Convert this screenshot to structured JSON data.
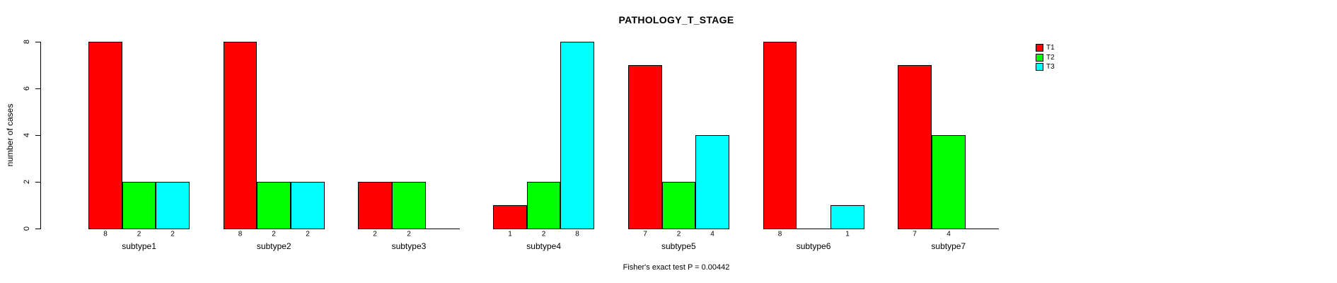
{
  "chart_data": {
    "type": "bar",
    "title": "PATHOLOGY_T_STAGE",
    "ylabel": "number of cases",
    "xlabel": "",
    "annotation": "Fisher's exact test P = 0.00442",
    "categories": [
      "subtype1",
      "subtype2",
      "subtype3",
      "subtype4",
      "subtype5",
      "subtype6",
      "subtype7"
    ],
    "series": [
      {
        "name": "T1",
        "color": "#ff0000",
        "values": [
          8,
          8,
          2,
          1,
          7,
          8,
          7
        ]
      },
      {
        "name": "T2",
        "color": "#00ff00",
        "values": [
          2,
          2,
          2,
          2,
          2,
          0,
          4
        ]
      },
      {
        "name": "T3",
        "color": "#00ffff",
        "values": [
          2,
          2,
          0,
          8,
          4,
          1,
          0
        ]
      }
    ],
    "bar_value_labels": {
      "subtype1": [
        8,
        2,
        2
      ],
      "subtype2": [
        8,
        2,
        2
      ],
      "subtype3": [
        2,
        2,
        null
      ],
      "subtype4": [
        1,
        2,
        8
      ],
      "subtype5": [
        7,
        2,
        4
      ],
      "subtype6": [
        8,
        null,
        1
      ],
      "subtype7": [
        7,
        4,
        null
      ]
    },
    "yticks": [
      "0",
      "2",
      "4",
      "6",
      "8"
    ],
    "ylim": [
      0,
      8
    ],
    "grid": false,
    "legend_position": "top-right",
    "legend": [
      {
        "label": "T1",
        "color": "#ff0000"
      },
      {
        "label": "T2",
        "color": "#00ff00"
      },
      {
        "label": "T3",
        "color": "#00ffff"
      }
    ]
  }
}
